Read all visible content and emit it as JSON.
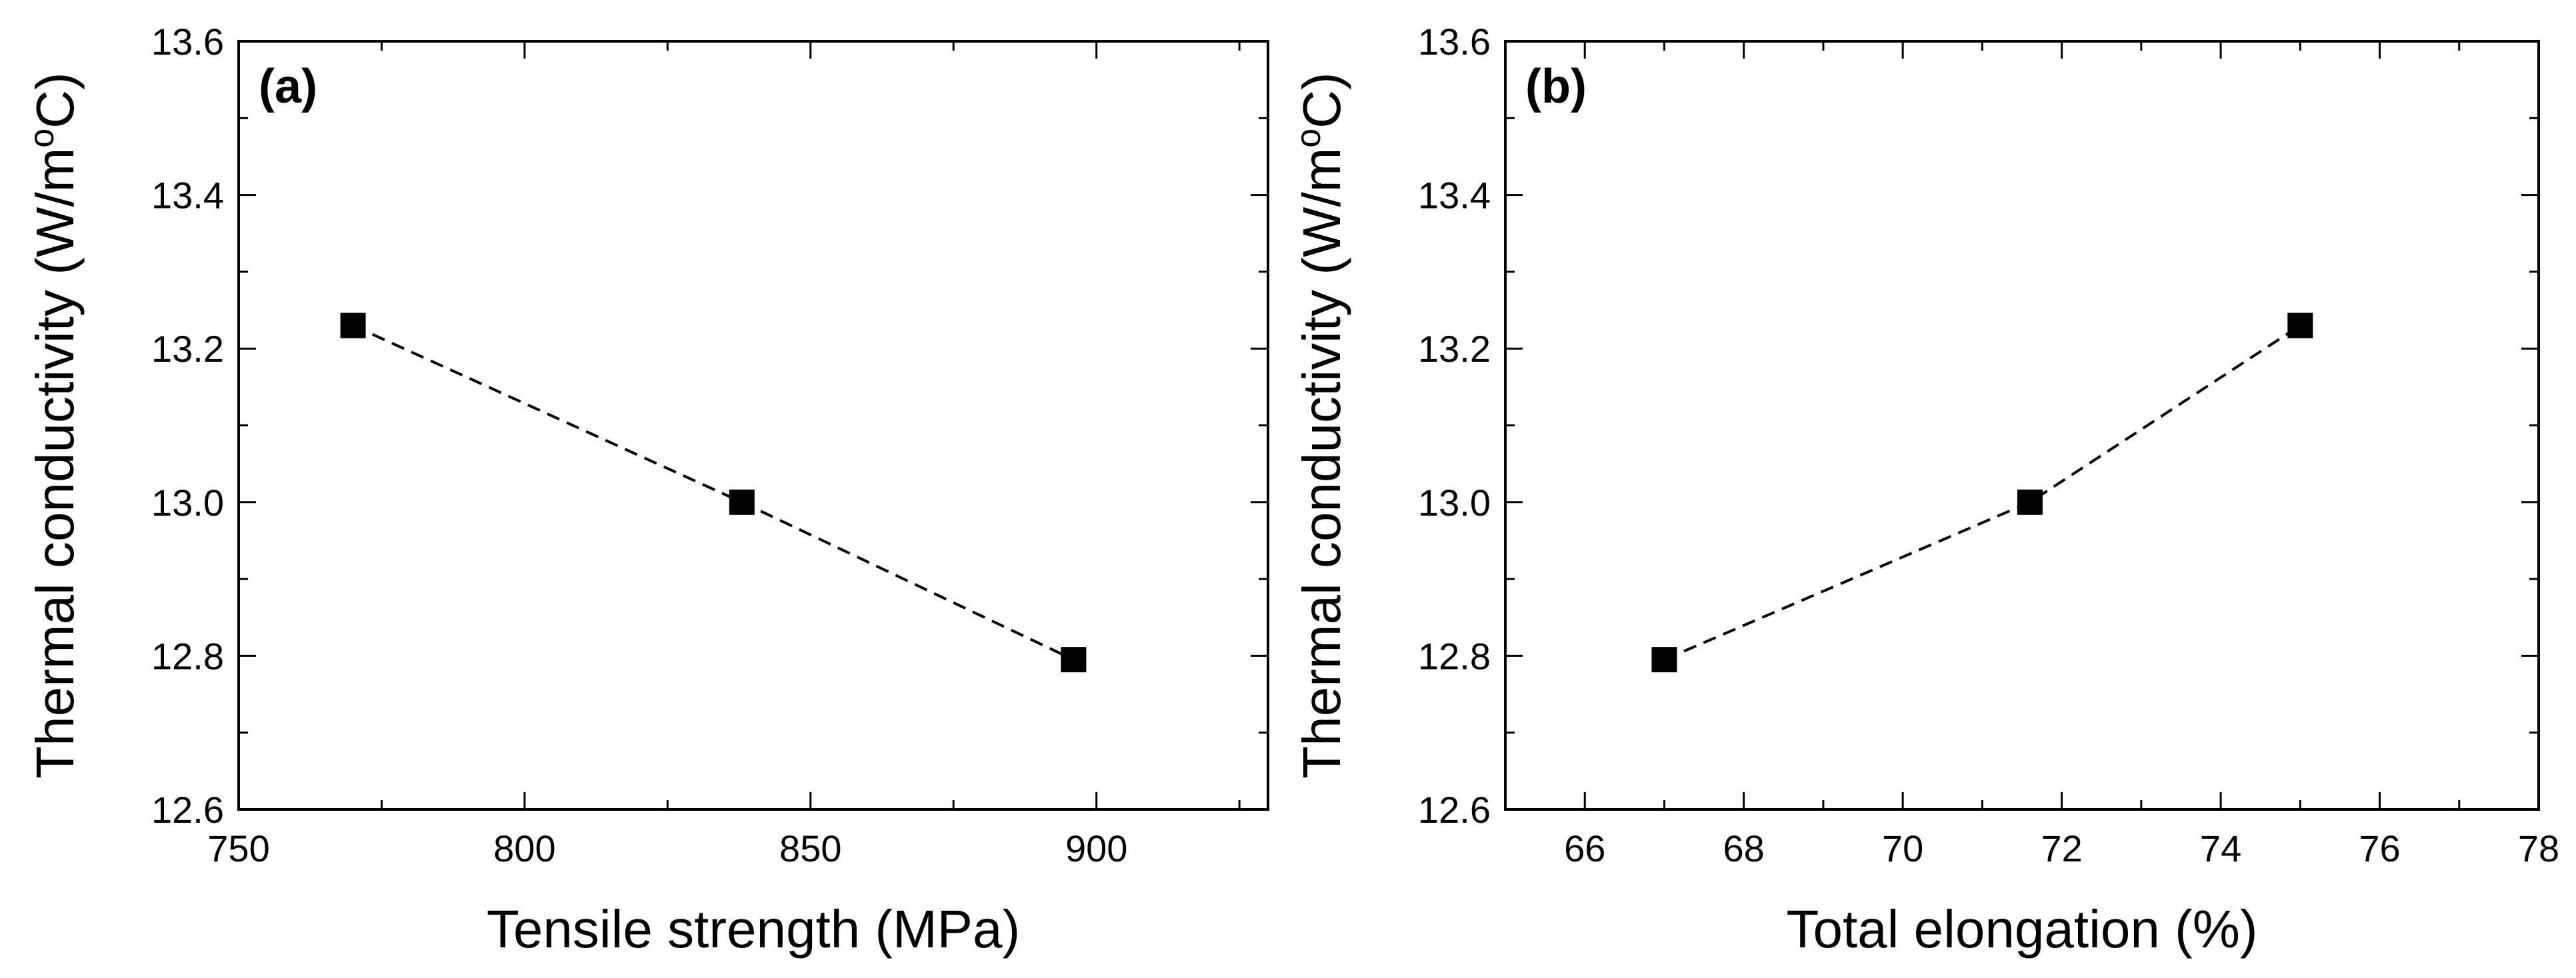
{
  "chart_data": [
    {
      "type": "scatter",
      "panel_label": "(a)",
      "xlabel": "Tensile strength (MPa)",
      "ylabel": "Thermal conductivity (W/m°C)",
      "ylabel_parts": {
        "pre": "Thermal conductivity (W/m",
        "sup": "o",
        "post": "C)"
      },
      "xlim": [
        750,
        930
      ],
      "ylim": [
        12.6,
        13.6
      ],
      "xticks": [
        "750",
        "800",
        "850",
        "900"
      ],
      "xtick_values": [
        750,
        800,
        850,
        900
      ],
      "xminor_step": 25,
      "yticks": [
        "12.6",
        "12.8",
        "13.0",
        "13.2",
        "13.4",
        "13.6"
      ],
      "ytick_values": [
        12.6,
        12.8,
        13.0,
        13.2,
        13.4,
        13.6
      ],
      "yminor_step": 0.1,
      "series": [
        {
          "name": "Thermal conductivity",
          "marker": "square",
          "line": "dashed",
          "color": "#000000",
          "x": [
            770,
            838,
            896
          ],
          "y": [
            13.23,
            13.0,
            12.795
          ]
        }
      ]
    },
    {
      "type": "scatter",
      "panel_label": "(b)",
      "xlabel": "Total elongation (%)",
      "ylabel": "Thermal conductivity (W/m°C)",
      "ylabel_parts": {
        "pre": "Thermal conductivity (W/m",
        "sup": "o",
        "post": "C)"
      },
      "xlim": [
        65,
        78
      ],
      "ylim": [
        12.6,
        13.6
      ],
      "xticks": [
        "66",
        "68",
        "70",
        "72",
        "74",
        "76",
        "78"
      ],
      "xtick_values": [
        66,
        68,
        70,
        72,
        74,
        76,
        78
      ],
      "xminor_step": 1,
      "yticks": [
        "12.6",
        "12.8",
        "13.0",
        "13.2",
        "13.4",
        "13.6"
      ],
      "ytick_values": [
        12.6,
        12.8,
        13.0,
        13.2,
        13.4,
        13.6
      ],
      "yminor_step": 0.1,
      "series": [
        {
          "name": "Thermal conductivity",
          "marker": "square",
          "line": "dashed",
          "color": "#000000",
          "x": [
            67,
            71.6,
            75
          ],
          "y": [
            12.795,
            13.0,
            13.23
          ]
        }
      ]
    }
  ]
}
